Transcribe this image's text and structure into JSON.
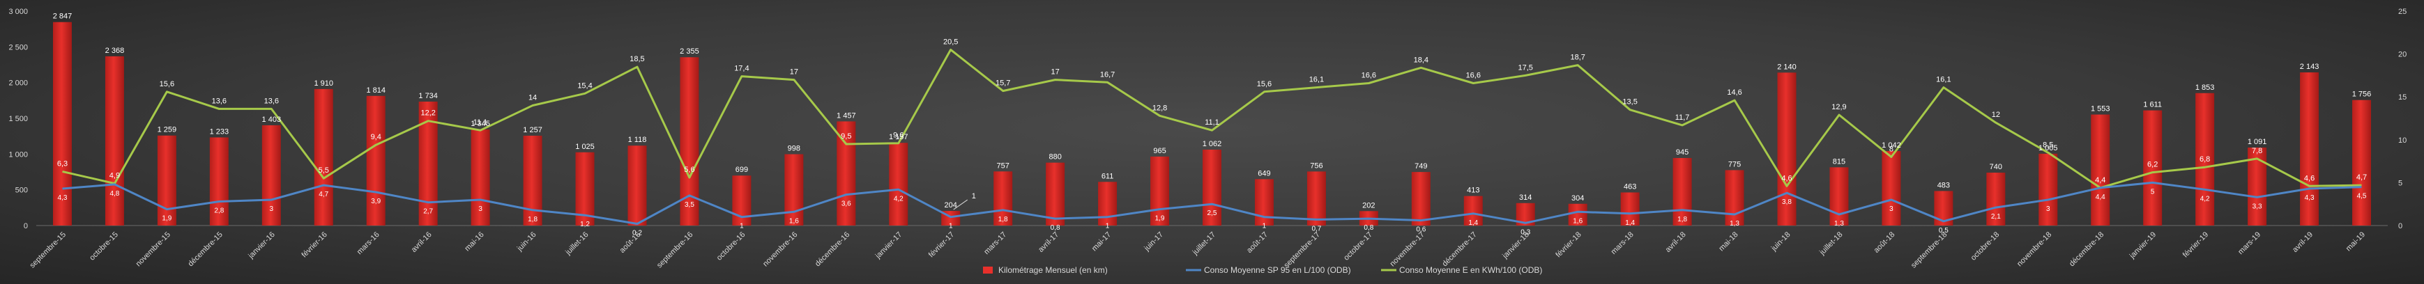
{
  "chart_data": {
    "type": "bar",
    "title": "",
    "categories": [
      "septembre-15",
      "octobre-15",
      "novembre-15",
      "décembre-15",
      "janvier-16",
      "février-16",
      "mars-16",
      "avril-16",
      "mai-16",
      "juin-16",
      "juillet-16",
      "août-16",
      "septembre-16",
      "octobre-16",
      "novembre-16",
      "décembre-16",
      "janvier-17",
      "février-17",
      "mars-17",
      "avril-17",
      "mai-17",
      "juin-17",
      "juillet-17",
      "août-17",
      "septembre-17",
      "octobre-17",
      "novembre-17",
      "décembre-17",
      "janvier-18",
      "février-18",
      "mars-18",
      "avril-18",
      "mai-18",
      "juin-18",
      "juillet-18",
      "août-18",
      "septembre-18",
      "octobre-18",
      "novembre-18",
      "décembre-18",
      "janvier-19",
      "février-19",
      "mars-19",
      "avril-19",
      "mai-19"
    ],
    "series": [
      {
        "name": "Kilométrage Mensuel (en km)",
        "kind": "bar",
        "axis": "left",
        "color": "#e8302b",
        "values": [
          2847,
          2368,
          1259,
          1233,
          1403,
          1910,
          1814,
          1734,
          1345,
          1257,
          1025,
          1118,
          2355,
          699,
          998,
          1457,
          1157,
          204,
          757,
          880,
          611,
          965,
          1062,
          649,
          756,
          202,
          749,
          413,
          314,
          304,
          463,
          945,
          775,
          2140,
          815,
          1042,
          483,
          740,
          1005,
          1553,
          1611,
          1853,
          1091,
          2143,
          1756
        ],
        "labels": [
          "2 847",
          "2 368",
          "1 259",
          "1 233",
          "1 403",
          "1 910",
          "1 814",
          "1 734",
          "1 345",
          "1 257",
          "1 025",
          "1 118",
          "2 355",
          "699",
          "998",
          "1 457",
          "1 157",
          "204",
          "757",
          "880",
          "611",
          "965",
          "1 062",
          "649",
          "756",
          "202",
          "749",
          "413",
          "314",
          "304",
          "463",
          "945",
          "775",
          "2 140",
          "815",
          "1 042",
          "483",
          "740",
          "1 005",
          "1 553",
          "1 611",
          "1 853",
          "1 091",
          "2 143",
          "1 756"
        ]
      },
      {
        "name": "Conso Moyenne SP 95 en L/100 (ODB)",
        "kind": "line",
        "axis": "right",
        "color": "#4f86c6",
        "values": [
          4.3,
          4.8,
          1.9,
          2.8,
          3,
          4.7,
          3.9,
          2.7,
          3,
          1.8,
          1.2,
          0.2,
          3.5,
          1,
          1.6,
          3.6,
          4.2,
          1,
          1.8,
          0.8,
          1,
          1.9,
          2.5,
          1,
          0.7,
          0.8,
          0.6,
          1.4,
          0.3,
          1.6,
          1.4,
          1.8,
          1.3,
          3.8,
          1.3,
          3,
          0.5,
          2.1,
          3,
          4.4,
          5,
          4.2,
          3.3,
          4.3,
          4.5
        ],
        "labels": [
          "4,3",
          "4,8",
          "1,9",
          "2,8",
          "3",
          "4,7",
          "3,9",
          "2,7",
          "3",
          "1,8",
          "1,2",
          "0,2",
          "3,5",
          "1",
          "1,6",
          "3,6",
          "4,2",
          "1",
          "1,8",
          "0,8",
          "1",
          "1,9",
          "2,5",
          "1",
          "0,7",
          "0,8",
          "0,6",
          "1,4",
          "0,3",
          "1,6",
          "1,4",
          "1,8",
          "1,3",
          "3,8",
          "1,3",
          "3",
          "0,5",
          "2,1",
          "3",
          "4,4",
          "5",
          "4,2",
          "3,3",
          "4,3",
          "4,5"
        ]
      },
      {
        "name": "Conso Moyenne E en KWh/100 (ODB)",
        "kind": "line",
        "axis": "right",
        "color": "#a6c94a",
        "values": [
          6.3,
          4.9,
          15.6,
          13.6,
          13.6,
          5.5,
          9.4,
          12.2,
          11.1,
          14,
          15.4,
          18.5,
          5.6,
          17.4,
          17,
          9.5,
          9.6,
          20.5,
          15.7,
          17,
          16.7,
          12.8,
          11.1,
          15.6,
          16.1,
          16.6,
          18.4,
          16.6,
          17.5,
          18.7,
          13.5,
          11.7,
          14.6,
          4.6,
          12.9,
          8,
          16.1,
          12,
          8.5,
          4.4,
          6.2,
          6.8,
          7.8,
          4.6,
          4.7
        ],
        "labels": [
          "6,3",
          "4,9",
          "15,6",
          "13,6",
          "13,6",
          "5,5",
          "9,4",
          "12,2",
          "11,1",
          "14",
          "15,4",
          "18,5",
          "5,6",
          "17,4",
          "17",
          "9,5",
          "9,6",
          "20,5",
          "15,7",
          "17",
          "16,7",
          "12,8",
          "11,1",
          "15,6",
          "16,1",
          "16,6",
          "18,4",
          "16,6",
          "17,5",
          "18,7",
          "13,5",
          "11,7",
          "14,6",
          "4,6",
          "12,9",
          "8",
          "16,1",
          "12",
          "8,5",
          "4,4",
          "6,2",
          "6,8",
          "7,8",
          "4,6",
          "4,7"
        ]
      }
    ],
    "y_left": {
      "ticks": [
        0,
        500,
        1000,
        1500,
        2000,
        2500,
        3000
      ],
      "tick_labels": [
        "0",
        "500",
        "1 000",
        "1 500",
        "2 000",
        "2 500",
        "3 000"
      ],
      "ylim": [
        0,
        3000
      ]
    },
    "y_right": {
      "ticks": [
        0,
        5,
        10,
        15,
        20,
        25
      ],
      "tick_labels": [
        "0",
        "5",
        "10",
        "15",
        "20",
        "25"
      ],
      "ylim": [
        0,
        25
      ]
    },
    "extra_annotations": [
      {
        "text": "1",
        "category_index": 17
      }
    ],
    "grid": false,
    "legend_position": "bottom-center",
    "colors": {
      "background": "#3a3a3a",
      "bar": "#e8302b",
      "line_blue": "#4f86c6",
      "line_green": "#a6c94a",
      "text": "#d9d9d9"
    }
  }
}
